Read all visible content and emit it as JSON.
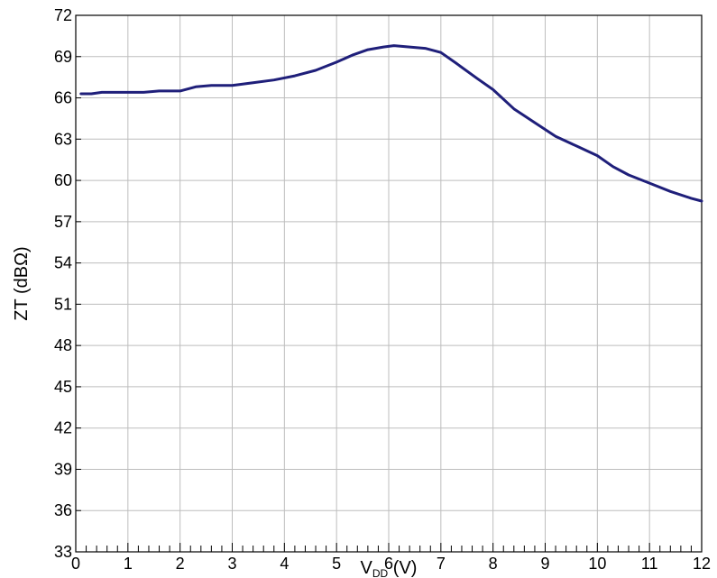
{
  "chart_data": {
    "type": "line",
    "title": "",
    "xlabel_main": "V",
    "xlabel_sub": "DD",
    "xlabel_unit": " (V)",
    "ylabel": "ZT (dBΩ)",
    "xlim": [
      0,
      12
    ],
    "ylim": [
      33,
      72
    ],
    "xticks": [
      0,
      1,
      2,
      3,
      4,
      5,
      6,
      7,
      8,
      9,
      10,
      11,
      12
    ],
    "yticks": [
      33,
      36,
      39,
      42,
      45,
      48,
      51,
      54,
      57,
      60,
      63,
      66,
      69,
      72
    ],
    "grid": true,
    "line_color": "#1f1f7a",
    "series": [
      {
        "x": [
          0.1,
          0.3,
          0.5,
          1.0,
          1.3,
          1.6,
          2.0,
          2.3,
          2.6,
          3.0,
          3.4,
          3.8,
          4.2,
          4.6,
          5.0,
          5.3,
          5.6,
          5.9,
          6.1,
          6.4,
          6.7,
          7.0,
          7.3,
          7.7,
          8.0,
          8.4,
          8.8,
          9.2,
          9.6,
          10.0,
          10.3,
          10.6,
          11.0,
          11.4,
          11.8,
          12.0
        ],
        "y": [
          66.3,
          66.3,
          66.4,
          66.4,
          66.4,
          66.5,
          66.5,
          66.8,
          66.9,
          66.9,
          67.1,
          67.3,
          67.6,
          68.0,
          68.6,
          69.1,
          69.5,
          69.7,
          69.8,
          69.7,
          69.6,
          69.3,
          68.5,
          67.4,
          66.6,
          65.2,
          64.2,
          63.2,
          62.5,
          61.8,
          61.0,
          60.4,
          59.8,
          59.2,
          58.7,
          58.5
        ]
      }
    ]
  }
}
